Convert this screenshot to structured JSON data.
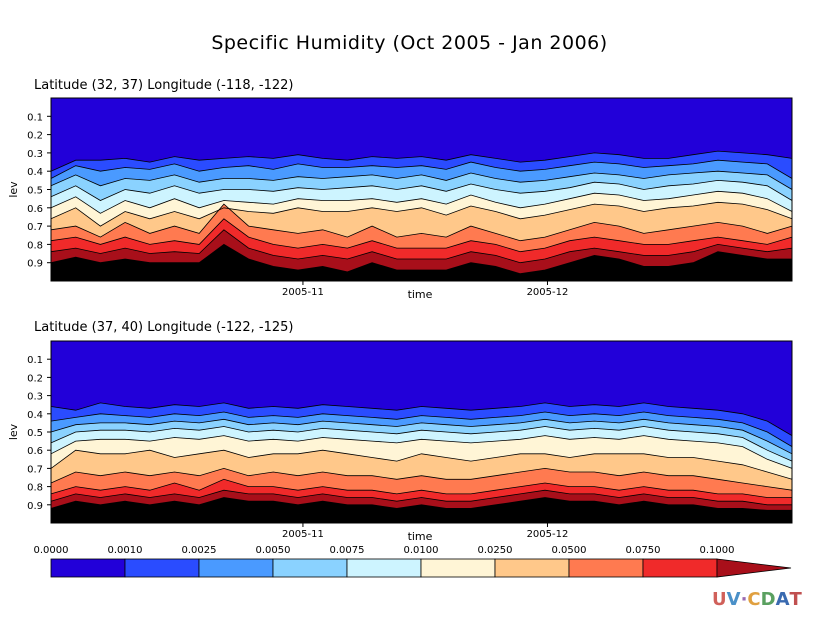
{
  "chart_data": {
    "type": "heatmap",
    "title": "Specific Humidity (Oct 2005 - Jan 2006)",
    "ylabel": "lev",
    "xlabel": "time",
    "y_ticks": [
      "0.1",
      "0.2",
      "0.3",
      "0.4",
      "0.5",
      "0.6",
      "0.7",
      "0.8",
      "0.9"
    ],
    "x_ticks": [
      "2005-11",
      "2005-12"
    ],
    "levels": [
      "0.0000",
      "0.0010",
      "0.0025",
      "0.0050",
      "0.0075",
      "0.0100",
      "0.0250",
      "0.0500",
      "0.0750",
      "0.1000"
    ],
    "colors": [
      "#2200d9",
      "#2a4cff",
      "#4a9aff",
      "#8ad2ff",
      "#cdf4ff",
      "#fff5d6",
      "#ffc88a",
      "#ff7a50",
      "#f02a2a",
      "#a80f1a"
    ],
    "panels": [
      {
        "subtitle": "Latitude (32, 37) Longitude (-118, -122)",
        "boundaries": [
          [
            0.4,
            0.34,
            0.34,
            0.33,
            0.35,
            0.32,
            0.34,
            0.33,
            0.32,
            0.33,
            0.31,
            0.33,
            0.34,
            0.32,
            0.33,
            0.32,
            0.34,
            0.31,
            0.33,
            0.35,
            0.34,
            0.32,
            0.3,
            0.31,
            0.33,
            0.33,
            0.31,
            0.29,
            0.3,
            0.31,
            0.33
          ],
          [
            0.44,
            0.37,
            0.4,
            0.38,
            0.39,
            0.36,
            0.4,
            0.38,
            0.37,
            0.39,
            0.36,
            0.38,
            0.38,
            0.37,
            0.38,
            0.37,
            0.39,
            0.35,
            0.38,
            0.4,
            0.39,
            0.37,
            0.35,
            0.36,
            0.38,
            0.37,
            0.36,
            0.34,
            0.35,
            0.36,
            0.44
          ],
          [
            0.48,
            0.42,
            0.48,
            0.44,
            0.45,
            0.42,
            0.46,
            0.44,
            0.44,
            0.45,
            0.43,
            0.44,
            0.43,
            0.42,
            0.44,
            0.42,
            0.45,
            0.41,
            0.44,
            0.46,
            0.45,
            0.43,
            0.41,
            0.42,
            0.44,
            0.42,
            0.41,
            0.4,
            0.41,
            0.42,
            0.5
          ],
          [
            0.54,
            0.48,
            0.56,
            0.5,
            0.52,
            0.48,
            0.52,
            0.5,
            0.5,
            0.51,
            0.49,
            0.5,
            0.49,
            0.48,
            0.5,
            0.48,
            0.51,
            0.47,
            0.5,
            0.52,
            0.51,
            0.49,
            0.46,
            0.47,
            0.5,
            0.48,
            0.47,
            0.45,
            0.46,
            0.48,
            0.56
          ],
          [
            0.6,
            0.54,
            0.63,
            0.56,
            0.6,
            0.55,
            0.6,
            0.56,
            0.57,
            0.58,
            0.55,
            0.56,
            0.56,
            0.55,
            0.57,
            0.55,
            0.58,
            0.53,
            0.57,
            0.6,
            0.58,
            0.55,
            0.52,
            0.53,
            0.56,
            0.55,
            0.53,
            0.51,
            0.52,
            0.55,
            0.62
          ],
          [
            0.66,
            0.6,
            0.7,
            0.62,
            0.66,
            0.62,
            0.66,
            0.6,
            0.62,
            0.63,
            0.6,
            0.62,
            0.62,
            0.6,
            0.62,
            0.6,
            0.64,
            0.59,
            0.62,
            0.66,
            0.64,
            0.61,
            0.58,
            0.59,
            0.62,
            0.6,
            0.59,
            0.57,
            0.58,
            0.61,
            0.66
          ],
          [
            0.72,
            0.7,
            0.76,
            0.68,
            0.74,
            0.7,
            0.74,
            0.58,
            0.7,
            0.72,
            0.74,
            0.72,
            0.76,
            0.7,
            0.76,
            0.74,
            0.76,
            0.7,
            0.74,
            0.78,
            0.76,
            0.72,
            0.68,
            0.7,
            0.74,
            0.72,
            0.7,
            0.68,
            0.7,
            0.74,
            0.7
          ],
          [
            0.78,
            0.76,
            0.8,
            0.76,
            0.8,
            0.78,
            0.8,
            0.66,
            0.76,
            0.8,
            0.82,
            0.8,
            0.82,
            0.78,
            0.82,
            0.82,
            0.82,
            0.78,
            0.8,
            0.84,
            0.82,
            0.78,
            0.76,
            0.78,
            0.8,
            0.8,
            0.78,
            0.76,
            0.78,
            0.8,
            0.76
          ],
          [
            0.84,
            0.82,
            0.85,
            0.82,
            0.85,
            0.84,
            0.85,
            0.72,
            0.82,
            0.86,
            0.88,
            0.86,
            0.88,
            0.84,
            0.88,
            0.88,
            0.88,
            0.84,
            0.86,
            0.9,
            0.88,
            0.84,
            0.82,
            0.84,
            0.86,
            0.86,
            0.84,
            0.8,
            0.82,
            0.84,
            0.82
          ],
          [
            0.9,
            0.87,
            0.9,
            0.88,
            0.9,
            0.9,
            0.9,
            0.8,
            0.88,
            0.92,
            0.94,
            0.92,
            0.95,
            0.9,
            0.94,
            0.94,
            0.94,
            0.9,
            0.92,
            0.96,
            0.94,
            0.9,
            0.86,
            0.88,
            0.92,
            0.92,
            0.9,
            0.84,
            0.86,
            0.88,
            0.88
          ]
        ]
      },
      {
        "subtitle": "Latitude (37, 40) Longitude (-122, -125)",
        "boundaries": [
          [
            0.36,
            0.38,
            0.34,
            0.36,
            0.37,
            0.35,
            0.36,
            0.34,
            0.37,
            0.36,
            0.37,
            0.35,
            0.36,
            0.37,
            0.38,
            0.36,
            0.37,
            0.38,
            0.37,
            0.36,
            0.34,
            0.36,
            0.35,
            0.36,
            0.34,
            0.36,
            0.37,
            0.38,
            0.4,
            0.44,
            0.52
          ],
          [
            0.44,
            0.42,
            0.4,
            0.41,
            0.42,
            0.4,
            0.41,
            0.39,
            0.42,
            0.41,
            0.42,
            0.4,
            0.41,
            0.42,
            0.43,
            0.41,
            0.42,
            0.43,
            0.42,
            0.41,
            0.39,
            0.41,
            0.4,
            0.41,
            0.39,
            0.41,
            0.42,
            0.43,
            0.45,
            0.5,
            0.58
          ],
          [
            0.5,
            0.46,
            0.45,
            0.45,
            0.46,
            0.44,
            0.45,
            0.43,
            0.46,
            0.45,
            0.46,
            0.44,
            0.45,
            0.46,
            0.47,
            0.45,
            0.46,
            0.47,
            0.46,
            0.45,
            0.43,
            0.45,
            0.44,
            0.45,
            0.43,
            0.45,
            0.46,
            0.47,
            0.49,
            0.55,
            0.62
          ],
          [
            0.56,
            0.5,
            0.49,
            0.49,
            0.5,
            0.48,
            0.49,
            0.47,
            0.5,
            0.49,
            0.5,
            0.48,
            0.49,
            0.5,
            0.51,
            0.49,
            0.5,
            0.51,
            0.5,
            0.49,
            0.47,
            0.49,
            0.48,
            0.49,
            0.47,
            0.49,
            0.5,
            0.51,
            0.53,
            0.6,
            0.66
          ],
          [
            0.62,
            0.55,
            0.54,
            0.54,
            0.55,
            0.53,
            0.54,
            0.52,
            0.55,
            0.54,
            0.55,
            0.53,
            0.54,
            0.55,
            0.56,
            0.54,
            0.55,
            0.56,
            0.55,
            0.54,
            0.52,
            0.54,
            0.53,
            0.54,
            0.52,
            0.54,
            0.55,
            0.56,
            0.58,
            0.65,
            0.7
          ],
          [
            0.7,
            0.6,
            0.62,
            0.62,
            0.6,
            0.64,
            0.62,
            0.6,
            0.64,
            0.62,
            0.62,
            0.6,
            0.62,
            0.64,
            0.66,
            0.62,
            0.64,
            0.66,
            0.64,
            0.62,
            0.62,
            0.64,
            0.62,
            0.62,
            0.62,
            0.64,
            0.64,
            0.66,
            0.68,
            0.72,
            0.76
          ],
          [
            0.78,
            0.72,
            0.74,
            0.72,
            0.74,
            0.72,
            0.74,
            0.7,
            0.74,
            0.72,
            0.74,
            0.72,
            0.74,
            0.74,
            0.76,
            0.74,
            0.76,
            0.76,
            0.74,
            0.72,
            0.7,
            0.72,
            0.72,
            0.74,
            0.72,
            0.74,
            0.74,
            0.76,
            0.78,
            0.8,
            0.82
          ],
          [
            0.84,
            0.8,
            0.82,
            0.8,
            0.82,
            0.78,
            0.82,
            0.76,
            0.8,
            0.8,
            0.82,
            0.8,
            0.82,
            0.82,
            0.84,
            0.82,
            0.84,
            0.84,
            0.82,
            0.8,
            0.78,
            0.8,
            0.8,
            0.82,
            0.8,
            0.82,
            0.82,
            0.84,
            0.84,
            0.86,
            0.86
          ],
          [
            0.88,
            0.84,
            0.86,
            0.84,
            0.86,
            0.84,
            0.86,
            0.82,
            0.84,
            0.84,
            0.86,
            0.84,
            0.86,
            0.86,
            0.88,
            0.86,
            0.88,
            0.88,
            0.86,
            0.84,
            0.82,
            0.84,
            0.84,
            0.86,
            0.84,
            0.86,
            0.86,
            0.88,
            0.88,
            0.9,
            0.9
          ],
          [
            0.92,
            0.88,
            0.9,
            0.88,
            0.9,
            0.88,
            0.9,
            0.86,
            0.88,
            0.88,
            0.9,
            0.88,
            0.9,
            0.9,
            0.92,
            0.9,
            0.92,
            0.92,
            0.9,
            0.88,
            0.86,
            0.88,
            0.88,
            0.9,
            0.88,
            0.9,
            0.9,
            0.92,
            0.92,
            0.93,
            0.93
          ]
        ]
      }
    ]
  },
  "logo_text": "UV-CDAT"
}
